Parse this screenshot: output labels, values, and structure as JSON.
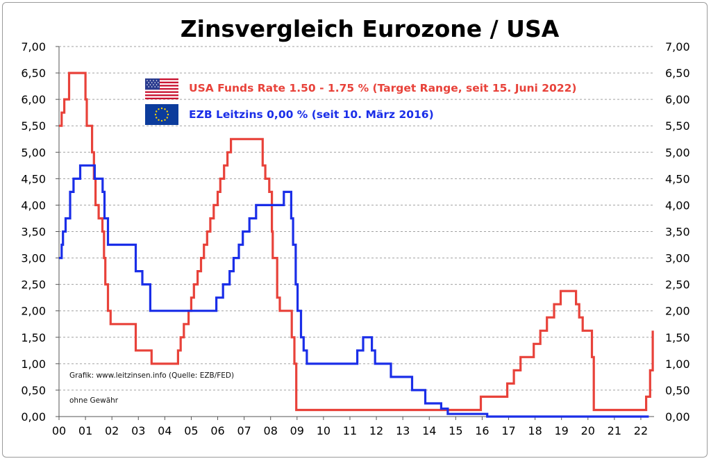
{
  "chart_data": {
    "type": "line",
    "title": "Zinsvergleich Eurozone / USA",
    "x_tick_labels": [
      "00",
      "01",
      "02",
      "03",
      "04",
      "05",
      "06",
      "07",
      "08",
      "09",
      "10",
      "11",
      "12",
      "13",
      "14",
      "15",
      "16",
      "17",
      "18",
      "19",
      "20",
      "21",
      "22"
    ],
    "xlim": [
      2000,
      2022.5
    ],
    "y_tick_labels": [
      "0,00",
      "0,50",
      "1,00",
      "1,50",
      "2,00",
      "2,50",
      "3,00",
      "3,50",
      "4,00",
      "4,50",
      "5,00",
      "5,50",
      "6,00",
      "6,50",
      "7,00"
    ],
    "ylim": [
      0,
      7
    ],
    "grid": "horizontal dashed",
    "series": [
      {
        "name": "USA Funds Rate 1.50 - 1.75 % (Target Range, seit 15. Juni 2022)",
        "color": "#e8423a",
        "step": true,
        "points": [
          [
            2000.0,
            5.5
          ],
          [
            2000.1,
            5.75
          ],
          [
            2000.2,
            6.0
          ],
          [
            2000.38,
            6.5
          ],
          [
            2001.0,
            6.0
          ],
          [
            2001.05,
            5.5
          ],
          [
            2001.25,
            5.0
          ],
          [
            2001.32,
            4.5
          ],
          [
            2001.38,
            4.0
          ],
          [
            2001.5,
            3.75
          ],
          [
            2001.64,
            3.5
          ],
          [
            2001.7,
            3.0
          ],
          [
            2001.75,
            2.5
          ],
          [
            2001.85,
            2.0
          ],
          [
            2001.95,
            1.75
          ],
          [
            2002.9,
            1.25
          ],
          [
            2003.5,
            1.0
          ],
          [
            2004.5,
            1.25
          ],
          [
            2004.6,
            1.5
          ],
          [
            2004.72,
            1.75
          ],
          [
            2004.9,
            2.0
          ],
          [
            2005.0,
            2.25
          ],
          [
            2005.1,
            2.5
          ],
          [
            2005.24,
            2.75
          ],
          [
            2005.37,
            3.0
          ],
          [
            2005.48,
            3.25
          ],
          [
            2005.6,
            3.5
          ],
          [
            2005.72,
            3.75
          ],
          [
            2005.85,
            4.0
          ],
          [
            2006.0,
            4.25
          ],
          [
            2006.1,
            4.5
          ],
          [
            2006.24,
            4.75
          ],
          [
            2006.37,
            5.0
          ],
          [
            2006.5,
            5.25
          ],
          [
            2007.7,
            4.75
          ],
          [
            2007.8,
            4.5
          ],
          [
            2007.95,
            4.25
          ],
          [
            2008.05,
            3.5
          ],
          [
            2008.08,
            3.0
          ],
          [
            2008.25,
            2.25
          ],
          [
            2008.35,
            2.0
          ],
          [
            2008.8,
            1.5
          ],
          [
            2008.9,
            1.0
          ],
          [
            2008.97,
            0.125
          ],
          [
            2015.95,
            0.375
          ],
          [
            2016.95,
            0.625
          ],
          [
            2017.2,
            0.875
          ],
          [
            2017.45,
            1.125
          ],
          [
            2017.95,
            1.375
          ],
          [
            2018.2,
            1.625
          ],
          [
            2018.45,
            1.875
          ],
          [
            2018.72,
            2.125
          ],
          [
            2018.97,
            2.375
          ],
          [
            2019.55,
            2.125
          ],
          [
            2019.67,
            1.875
          ],
          [
            2019.8,
            1.625
          ],
          [
            2020.15,
            1.125
          ],
          [
            2020.22,
            0.125
          ],
          [
            2022.2,
            0.375
          ],
          [
            2022.35,
            0.875
          ],
          [
            2022.45,
            1.625
          ]
        ]
      },
      {
        "name": "EZB Leitzins 0,00 %  (seit 10. März 2016)",
        "color": "#1a2ee8",
        "step": true,
        "points": [
          [
            2000.0,
            3.0
          ],
          [
            2000.1,
            3.25
          ],
          [
            2000.15,
            3.5
          ],
          [
            2000.25,
            3.75
          ],
          [
            2000.42,
            4.25
          ],
          [
            2000.55,
            4.5
          ],
          [
            2000.8,
            4.75
          ],
          [
            2001.35,
            4.5
          ],
          [
            2001.65,
            4.25
          ],
          [
            2001.72,
            3.75
          ],
          [
            2001.85,
            3.25
          ],
          [
            2002.9,
            2.75
          ],
          [
            2003.15,
            2.5
          ],
          [
            2003.45,
            2.0
          ],
          [
            2005.95,
            2.25
          ],
          [
            2006.2,
            2.5
          ],
          [
            2006.45,
            2.75
          ],
          [
            2006.6,
            3.0
          ],
          [
            2006.8,
            3.25
          ],
          [
            2006.95,
            3.5
          ],
          [
            2007.2,
            3.75
          ],
          [
            2007.45,
            4.0
          ],
          [
            2008.5,
            4.25
          ],
          [
            2008.78,
            3.75
          ],
          [
            2008.85,
            3.25
          ],
          [
            2008.95,
            2.5
          ],
          [
            2009.02,
            2.0
          ],
          [
            2009.15,
            1.5
          ],
          [
            2009.25,
            1.25
          ],
          [
            2009.37,
            1.0
          ],
          [
            2011.28,
            1.25
          ],
          [
            2011.5,
            1.5
          ],
          [
            2011.83,
            1.25
          ],
          [
            2011.95,
            1.0
          ],
          [
            2012.55,
            0.75
          ],
          [
            2013.35,
            0.5
          ],
          [
            2013.85,
            0.25
          ],
          [
            2014.45,
            0.15
          ],
          [
            2014.7,
            0.05
          ],
          [
            2016.19,
            0.0
          ],
          [
            2022.3,
            0.0
          ]
        ]
      }
    ],
    "annotations": [
      "Grafik: www.leitzinsen.info (Quelle: EZB/FED)",
      "ohne Gewähr"
    ]
  },
  "legend": {
    "usa_label": "USA Funds Rate 1.50 - 1.75 % (Target Range, seit 15. Juni 2022)",
    "ezb_label": "EZB Leitzins 0,00 %  (seit 10. März 2016)",
    "usa_icon": "us-flag-icon",
    "eu_icon": "eu-flag-icon"
  }
}
